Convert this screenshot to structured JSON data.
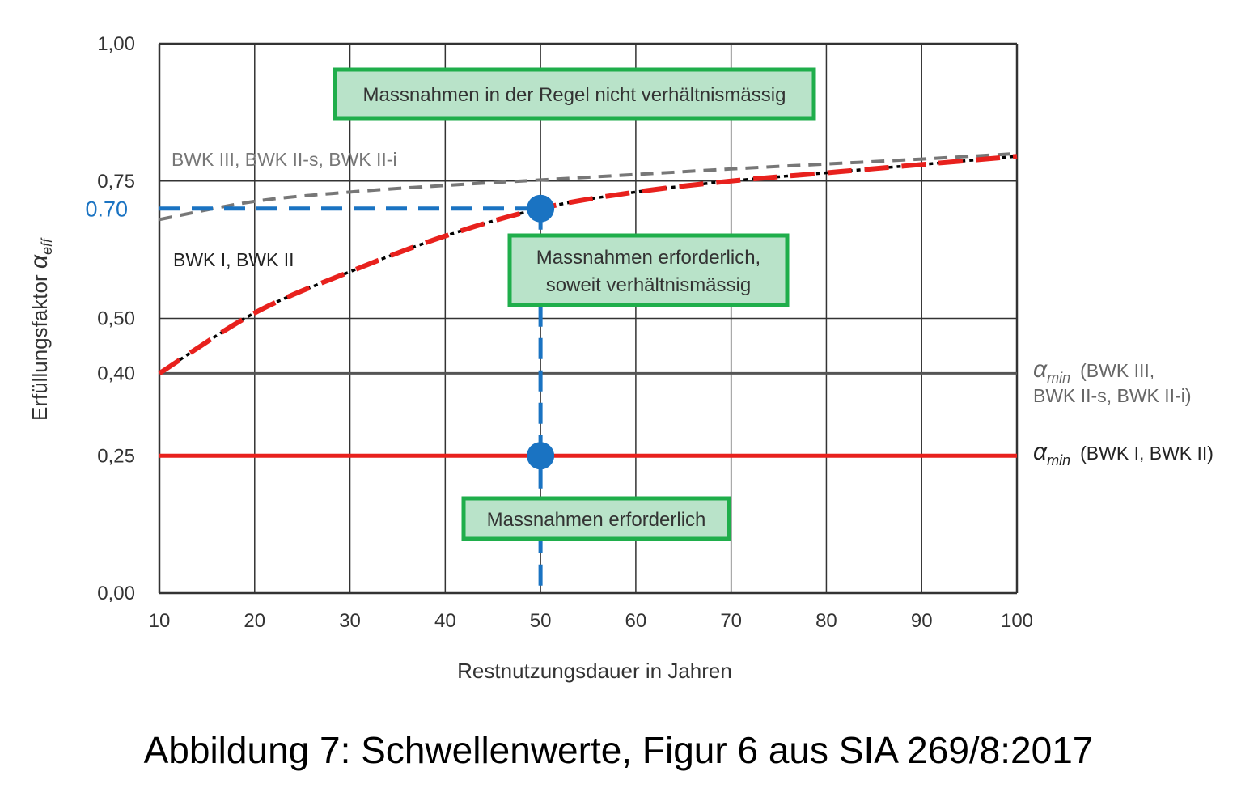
{
  "chart_data": {
    "type": "line",
    "xlabel": "Restnutzungsdauer in Jahren",
    "ylabel": "Erfüllungsfaktor",
    "ylabel_symbol": "α",
    "ylabel_sub": "eff",
    "xlim": [
      10,
      100
    ],
    "ylim": [
      0,
      1
    ],
    "x_ticks": [
      10,
      20,
      30,
      40,
      50,
      60,
      70,
      80,
      90,
      100
    ],
    "x_tick_labels": [
      "10",
      "20",
      "30",
      "40",
      "50",
      "60",
      "70",
      "80",
      "90",
      "100"
    ],
    "y_ticks": [
      0,
      0.25,
      0.4,
      0.5,
      0.75,
      1.0
    ],
    "y_tick_labels": [
      "0,00",
      "0,25",
      "0,40",
      "0,50",
      "0,75",
      "1,00"
    ],
    "grid": true,
    "series": [
      {
        "name": "BWK I, BWK II",
        "color": "#e8211d",
        "style": "red-dashed-over-black-dotted",
        "x": [
          10,
          20,
          30,
          40,
          50,
          60,
          70,
          80,
          90,
          100
        ],
        "y": [
          0.4,
          0.51,
          0.585,
          0.65,
          0.7,
          0.73,
          0.75,
          0.765,
          0.78,
          0.795
        ]
      },
      {
        "name": "BWK III, BWK II-s, BWK II-i",
        "color": "#777777",
        "style": "gray-dashed",
        "x": [
          10,
          20,
          30,
          40,
          50,
          60,
          70,
          80,
          90,
          100
        ],
        "y": [
          0.68,
          0.713,
          0.73,
          0.742,
          0.752,
          0.762,
          0.772,
          0.781,
          0.79,
          0.8
        ]
      }
    ],
    "reference_lines": [
      {
        "name": "alpha_min BWK III",
        "y": 0.4,
        "color": "#555555"
      },
      {
        "name": "alpha_min BWK I",
        "y": 0.25,
        "color": "#e8211d"
      }
    ],
    "blue_guides": {
      "color": "#1a73c2",
      "x": 50,
      "y": 0.7,
      "label": "0.70"
    },
    "points": [
      {
        "x": 50,
        "y": 0.7
      },
      {
        "x": 50,
        "y": 0.25
      }
    ],
    "annotations": {
      "box_top": "Massnahmen in der Regel nicht verhältnismässig",
      "box_mid_1": "Massnahmen erforderlich,",
      "box_mid_2": "soweit verhältnismässig",
      "box_bottom": "Massnahmen erforderlich",
      "label_gray": "BWK III, BWK II-s, BWK II-i",
      "label_red": "BWK I, BWK II",
      "amin_symbol": "α",
      "amin_sub": "min",
      "amin_gray_1": "(BWK III,",
      "amin_gray_2": "BWK II-s, BWK II-i)",
      "amin_red": "(BWK I, BWK II)"
    }
  },
  "caption": "Abbildung 7: Schwellenwerte, Figur 6 aus SIA 269/8:2017"
}
